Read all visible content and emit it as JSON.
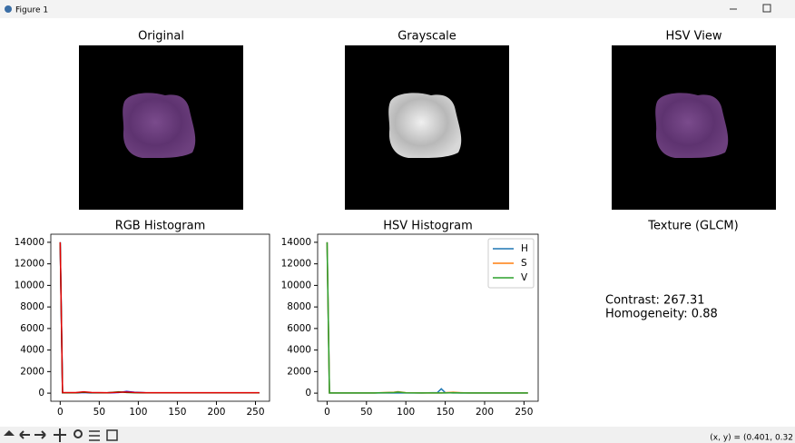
{
  "window": {
    "title": "Figure 1",
    "status": "(x, y) = (0.401, 0.32"
  },
  "images": [
    {
      "title": "Original"
    },
    {
      "title": "Grayscale"
    },
    {
      "title": "HSV View"
    }
  ],
  "texture": {
    "title": "Texture (GLCM)",
    "lines": [
      "Contrast: 267.31",
      "Homogeneity: 0.88"
    ]
  },
  "chart_data": [
    {
      "type": "line",
      "title": "RGB Histogram",
      "x": [
        0,
        3,
        20,
        30,
        40,
        60,
        75,
        85,
        95,
        110,
        150,
        200,
        255
      ],
      "series": [
        {
          "color": "#0000ff",
          "values": [
            14000,
            30,
            30,
            60,
            30,
            30,
            60,
            150,
            80,
            30,
            30,
            30,
            30
          ]
        },
        {
          "color": "#008000",
          "values": [
            14000,
            30,
            30,
            80,
            40,
            30,
            120,
            60,
            40,
            30,
            30,
            30,
            30
          ]
        },
        {
          "color": "#e00000",
          "values": [
            14000,
            50,
            50,
            120,
            60,
            40,
            80,
            100,
            60,
            40,
            40,
            40,
            40
          ]
        }
      ],
      "xlim": [
        -12,
        268
      ],
      "ylim": [
        -750,
        14750
      ],
      "xticks": [
        0,
        50,
        100,
        150,
        200,
        250
      ],
      "yticks": [
        0,
        2000,
        4000,
        6000,
        8000,
        10000,
        12000,
        14000
      ]
    },
    {
      "type": "line",
      "title": "HSV Histogram",
      "x": [
        0,
        3,
        20,
        60,
        85,
        90,
        100,
        120,
        140,
        145,
        150,
        160,
        170,
        180,
        200,
        255
      ],
      "series": [
        {
          "name": "H",
          "color": "#1f77b4",
          "values": [
            14000,
            20,
            20,
            20,
            20,
            20,
            20,
            20,
            50,
            400,
            50,
            20,
            20,
            20,
            20,
            20
          ]
        },
        {
          "name": "S",
          "color": "#ff7f0e",
          "values": [
            14000,
            20,
            20,
            20,
            80,
            130,
            40,
            20,
            20,
            20,
            40,
            80,
            40,
            20,
            20,
            20
          ]
        },
        {
          "name": "V",
          "color": "#2ca02c",
          "values": [
            14000,
            20,
            20,
            20,
            60,
            100,
            30,
            20,
            20,
            20,
            20,
            40,
            20,
            20,
            20,
            20
          ]
        }
      ],
      "xlim": [
        -12,
        268
      ],
      "ylim": [
        -750,
        14750
      ],
      "xticks": [
        0,
        50,
        100,
        150,
        200,
        250
      ],
      "yticks": [
        0,
        2000,
        4000,
        6000,
        8000,
        10000,
        12000,
        14000
      ],
      "legend": "upper right"
    }
  ]
}
